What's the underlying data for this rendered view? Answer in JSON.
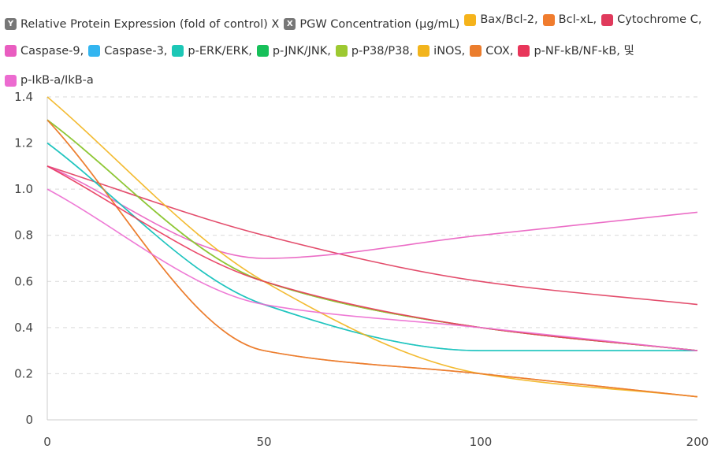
{
  "legend_axes": [
    {
      "badge": "Y",
      "label": "Relative Protein Expression (fold of control) X"
    },
    {
      "badge": "X",
      "label": "PGW Concentration (μg/mL)"
    }
  ],
  "chart_data": {
    "type": "line",
    "x": [
      0,
      50,
      100,
      200
    ],
    "xticks": [
      "0",
      "50",
      "100",
      "200"
    ],
    "ylim": [
      0,
      1.4
    ],
    "yticks": [
      0,
      0.2,
      0.4,
      0.6,
      0.8,
      1.0,
      1.2,
      1.4
    ],
    "ytick_labels": [
      "0",
      "0.2",
      "0.4",
      "0.6",
      "0.8",
      "1.0",
      "1.2",
      "1.4"
    ],
    "grid": true,
    "legend_position": "top",
    "series": [
      {
        "name": "Bax/Bcl-2,",
        "color": "#F5B31B",
        "values": [
          1.3,
          0.6,
          0.4,
          0.3
        ]
      },
      {
        "name": "Bcl-xL,",
        "color": "#F07C2E",
        "values": [
          1.3,
          0.3,
          0.2,
          0.1
        ]
      },
      {
        "name": "Cytochrome C,",
        "color": "#E03A5C",
        "values": [
          1.1,
          0.8,
          0.6,
          0.5
        ]
      },
      {
        "name": "Caspase-9,",
        "color": "#E95DC0",
        "values": [
          1.1,
          0.7,
          0.8,
          0.9
        ]
      },
      {
        "name": "Caspase-3,",
        "color": "#33B5F0",
        "values": [
          1.2,
          0.5,
          0.3,
          0.3
        ]
      },
      {
        "name": "p-ERK/ERK,",
        "color": "#1CC7B6",
        "values": [
          1.2,
          0.5,
          0.3,
          0.3
        ]
      },
      {
        "name": "p-JNK/JNK,",
        "color": "#17C05A",
        "values": [
          1.3,
          0.6,
          0.4,
          0.3
        ]
      },
      {
        "name": "p-P38/P38,",
        "color": "#9DC931",
        "values": [
          1.3,
          0.6,
          0.4,
          0.3
        ]
      },
      {
        "name": "iNOS,",
        "color": "#F2B41C",
        "values": [
          1.4,
          0.6,
          0.2,
          0.1
        ]
      },
      {
        "name": "COX,",
        "color": "#EB7D2D",
        "values": [
          1.3,
          0.3,
          0.2,
          0.1
        ]
      },
      {
        "name": "p-NF-kB/NF-kB, 및",
        "color": "#E8365A",
        "values": [
          1.1,
          0.6,
          0.4,
          0.3
        ]
      },
      {
        "name": "p-IkB-a/IkB-a",
        "color": "#EC6BD0",
        "values": [
          1.0,
          0.5,
          0.4,
          0.3
        ]
      }
    ]
  }
}
